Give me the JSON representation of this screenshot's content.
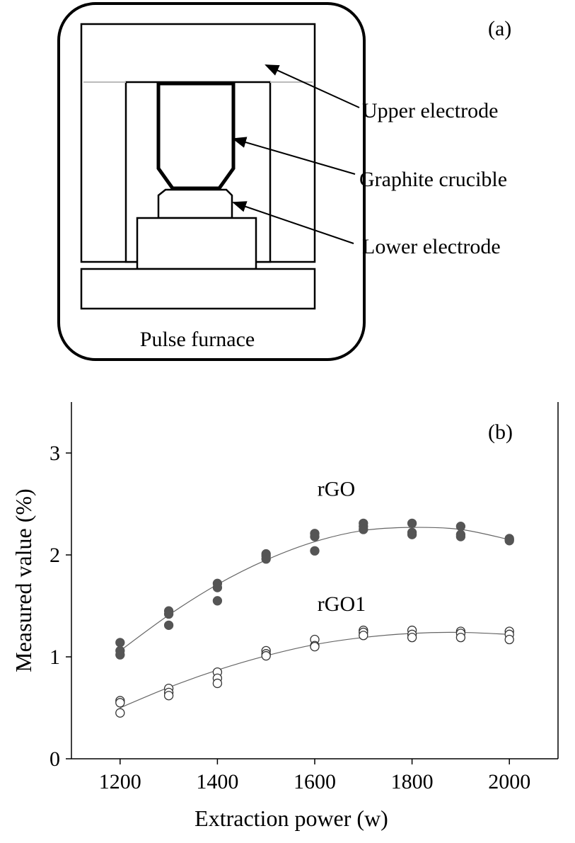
{
  "panel_a": {
    "panel_label": "(a)",
    "labels": {
      "upper_electrode": "Upper electrode",
      "graphite_crucible": "Graphite crucible",
      "lower_electrode": "Lower electrode",
      "pulse_furnace": "Pulse furnace"
    }
  },
  "chart_data": {
    "type": "scatter",
    "panel_label": "(b)",
    "xlabel": "Extraction power (w)",
    "ylabel": "Measured value  (%)",
    "xlim": [
      1100,
      2100
    ],
    "ylim": [
      0,
      3.5
    ],
    "xticks": [
      1200,
      1400,
      1600,
      1800,
      2000
    ],
    "yticks": [
      0,
      1,
      2,
      3
    ],
    "grid": false,
    "series": [
      {
        "name": "rGO",
        "marker": "filled-circle",
        "color": "#555555",
        "points": [
          [
            1200,
            1.14
          ],
          [
            1200,
            1.06
          ],
          [
            1200,
            1.02
          ],
          [
            1300,
            1.45
          ],
          [
            1300,
            1.42
          ],
          [
            1300,
            1.31
          ],
          [
            1400,
            1.72
          ],
          [
            1400,
            1.68
          ],
          [
            1400,
            1.55
          ],
          [
            1500,
            2.01
          ],
          [
            1500,
            1.99
          ],
          [
            1500,
            1.96
          ],
          [
            1600,
            2.21
          ],
          [
            1600,
            2.18
          ],
          [
            1600,
            2.04
          ],
          [
            1700,
            2.31
          ],
          [
            1700,
            2.28
          ],
          [
            1700,
            2.25
          ],
          [
            1800,
            2.31
          ],
          [
            1800,
            2.22
          ],
          [
            1800,
            2.2
          ],
          [
            1900,
            2.28
          ],
          [
            1900,
            2.2
          ],
          [
            1900,
            2.18
          ],
          [
            2000,
            2.16
          ],
          [
            2000,
            2.15
          ],
          [
            2000,
            2.14
          ]
        ],
        "fit": [
          [
            1200,
            1.06
          ],
          [
            1300,
            1.41
          ],
          [
            1400,
            1.71
          ],
          [
            1500,
            1.95
          ],
          [
            1600,
            2.13
          ],
          [
            1700,
            2.24
          ],
          [
            1800,
            2.27
          ],
          [
            1900,
            2.25
          ],
          [
            2000,
            2.15
          ]
        ]
      },
      {
        "name": "rGO1",
        "marker": "open-circle",
        "color": "#333333",
        "points": [
          [
            1200,
            0.57
          ],
          [
            1200,
            0.55
          ],
          [
            1200,
            0.45
          ],
          [
            1300,
            0.69
          ],
          [
            1300,
            0.65
          ],
          [
            1300,
            0.62
          ],
          [
            1400,
            0.85
          ],
          [
            1400,
            0.79
          ],
          [
            1400,
            0.74
          ],
          [
            1500,
            1.06
          ],
          [
            1500,
            1.03
          ],
          [
            1500,
            1.01
          ],
          [
            1600,
            1.17
          ],
          [
            1600,
            1.11
          ],
          [
            1600,
            1.1
          ],
          [
            1700,
            1.26
          ],
          [
            1700,
            1.24
          ],
          [
            1700,
            1.21
          ],
          [
            1800,
            1.26
          ],
          [
            1800,
            1.22
          ],
          [
            1800,
            1.19
          ],
          [
            1900,
            1.25
          ],
          [
            1900,
            1.23
          ],
          [
            1900,
            1.19
          ],
          [
            2000,
            1.25
          ],
          [
            2000,
            1.22
          ],
          [
            2000,
            1.17
          ]
        ],
        "fit": [
          [
            1200,
            0.5
          ],
          [
            1300,
            0.7
          ],
          [
            1400,
            0.87
          ],
          [
            1500,
            1.01
          ],
          [
            1600,
            1.12
          ],
          [
            1700,
            1.19
          ],
          [
            1800,
            1.23
          ],
          [
            1900,
            1.24
          ],
          [
            2000,
            1.22
          ]
        ]
      }
    ],
    "annotations": [
      {
        "text": "rGO",
        "x": 1700,
        "y": 2.58
      },
      {
        "text": "rGO1",
        "x": 1700,
        "y": 1.45
      }
    ]
  }
}
